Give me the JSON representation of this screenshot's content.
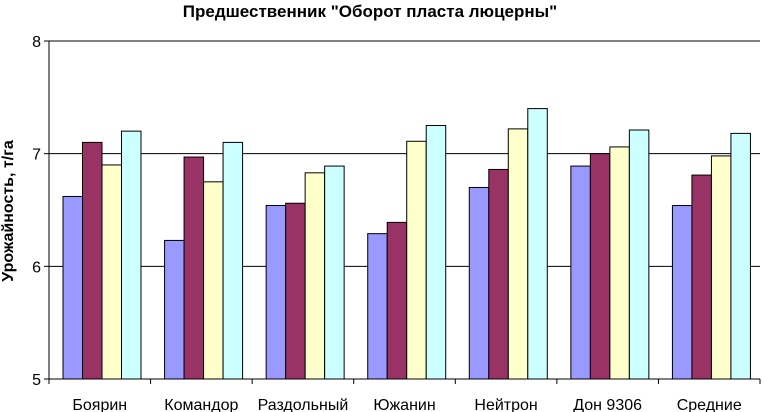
{
  "chart_data": {
    "type": "bar",
    "title": "Предшественник \"Оборот пласта люцерны\"",
    "xlabel": "",
    "ylabel": "Урожайность, т/га",
    "ylim": [
      5,
      8
    ],
    "yticks": [
      5,
      6,
      7,
      8
    ],
    "grid": true,
    "legend": "none",
    "categories": [
      "Боярин",
      "Командор",
      "Раздольный",
      "Южанин",
      "Нейтрон",
      "Дон 9306",
      "Средние"
    ],
    "series": [
      {
        "color": "#9999ff",
        "values": [
          6.62,
          6.23,
          6.54,
          6.29,
          6.7,
          6.89,
          6.54
        ]
      },
      {
        "color": "#993366",
        "values": [
          7.1,
          6.97,
          6.56,
          6.39,
          6.86,
          7.0,
          6.81
        ]
      },
      {
        "color": "#ffffcc",
        "values": [
          6.9,
          6.75,
          6.83,
          7.11,
          7.22,
          7.06,
          6.98
        ]
      },
      {
        "color": "#ccffff",
        "values": [
          7.2,
          7.1,
          6.89,
          7.25,
          7.4,
          7.21,
          7.18
        ]
      }
    ]
  }
}
